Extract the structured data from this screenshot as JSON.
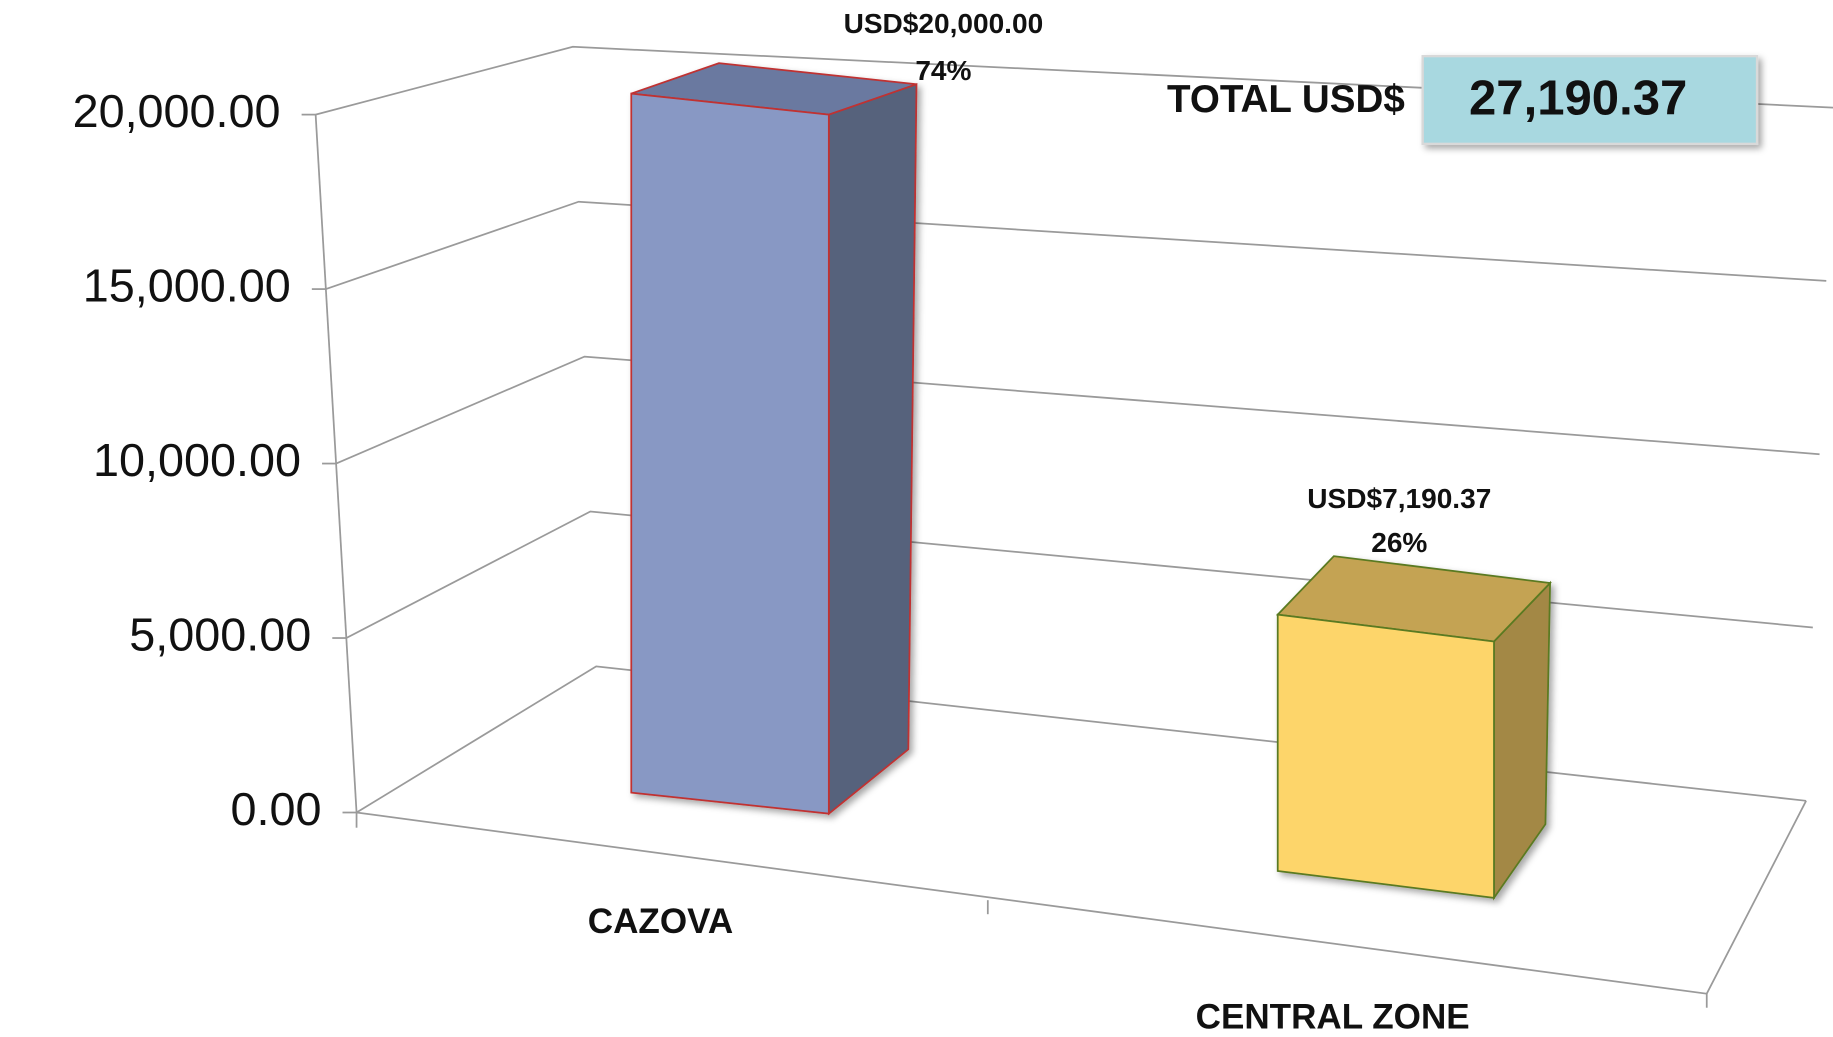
{
  "chart_data": {
    "type": "bar3d",
    "categories": [
      "CAZOVA",
      "CENTRAL ZONE"
    ],
    "values": [
      20000,
      7190.37
    ],
    "value_labels": [
      "USD$20,000.00",
      "USD$7,190.37"
    ],
    "share_labels": [
      "74%",
      "26%"
    ],
    "colors": [
      "#8898c4",
      "#fdd56b"
    ],
    "ylim": [
      0,
      20000
    ],
    "yticks": [
      {
        "value": 0,
        "label": "0.00"
      },
      {
        "value": 5000,
        "label": "5,000.00"
      },
      {
        "value": 10000,
        "label": "10,000.00"
      },
      {
        "value": 15000,
        "label": "15,000.00"
      },
      {
        "value": 20000,
        "label": "20,000.00"
      }
    ],
    "grid": true,
    "total_label": "TOTAL USD$",
    "total": {
      "value": 27190.37,
      "label": "27,190.37"
    }
  }
}
